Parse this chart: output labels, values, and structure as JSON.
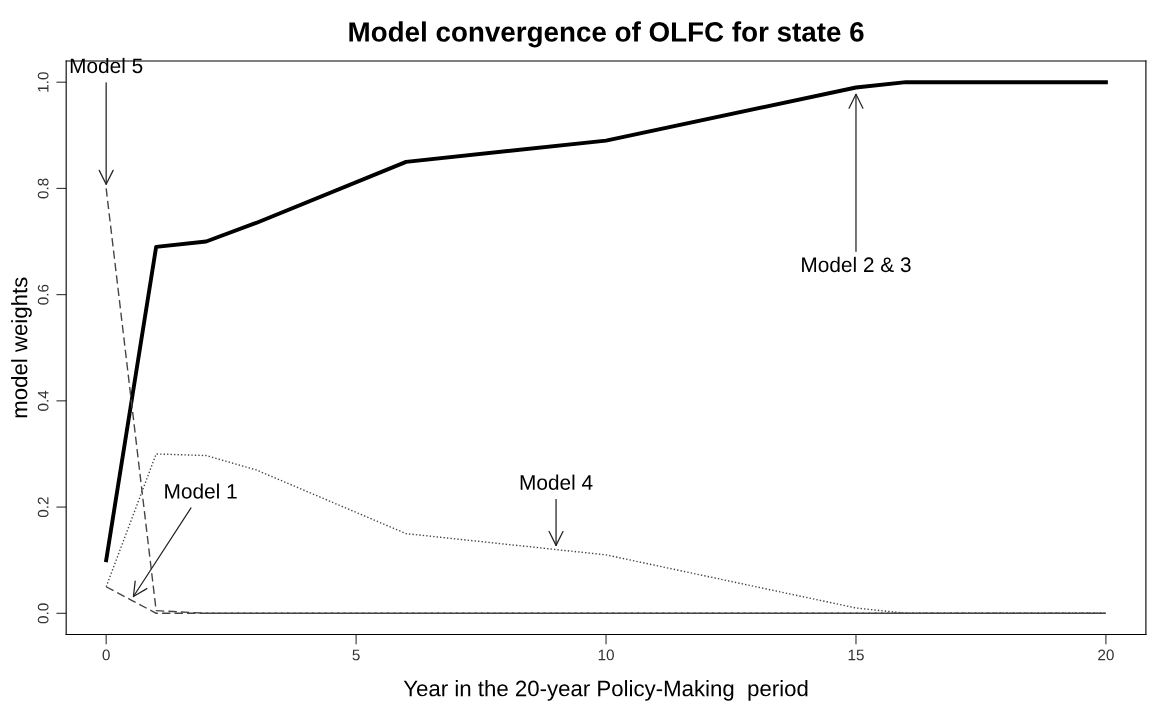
{
  "chart_data": {
    "type": "line",
    "title": "Model convergence of OLFC for state 6",
    "xlabel": "Year in the 20-year Policy-Making  period",
    "ylabel": "model weights",
    "series": [
      {
        "color": "#000000",
        "line_style": "solid",
        "x": [
          0,
          1,
          2,
          3,
          6,
          10,
          15,
          16,
          20
        ],
        "values": [
          0.1,
          0.69,
          0.7,
          0.735,
          0.85,
          0.89,
          0.99,
          1.0,
          1.0
        ]
      },
      {
        "color": "#444444",
        "line_style": "dotted",
        "x": [
          0,
          1,
          2,
          3,
          6,
          9,
          10,
          15,
          16,
          20
        ],
        "values": [
          0.05,
          0.3,
          0.297,
          0.27,
          0.15,
          0.12,
          0.11,
          0.01,
          0.0,
          0.0
        ]
      },
      {
        "color": "#444444",
        "line_style": "dashed",
        "x": [
          0,
          1,
          2,
          20
        ],
        "values": [
          0.8,
          0.005,
          0.0,
          0.0
        ]
      },
      {
        "color": "#444444",
        "line_style": "dashed",
        "x": [
          0,
          0.5,
          1,
          20
        ],
        "values": [
          0.05,
          0.025,
          0.0,
          0.0
        ]
      }
    ],
    "annotations": [
      {
        "text": "Model 5",
        "x": 0,
        "y": 0.8
      },
      {
        "text": "Model 1",
        "x": 0.5,
        "y": 0.025
      },
      {
        "text": "Model 4",
        "x": 9,
        "y": 0.12
      },
      {
        "text": "Model 2 & 3",
        "x": 15,
        "y": 0.985
      }
    ],
    "xlim": [
      -0.8,
      20.8
    ],
    "ylim": [
      -0.04,
      1.04
    ],
    "xticks": [
      0,
      5,
      10,
      15,
      20
    ],
    "yticks": [
      {
        "value": 0,
        "label": "0.0"
      },
      {
        "value": 0.2,
        "label": "0.2"
      },
      {
        "value": 0.4,
        "label": "0.4"
      },
      {
        "value": 0.6,
        "label": "0.6"
      },
      {
        "value": 0.8,
        "label": "0.8"
      },
      {
        "value": 1.0,
        "label": "1.0"
      }
    ],
    "grid": false,
    "legend": false
  }
}
